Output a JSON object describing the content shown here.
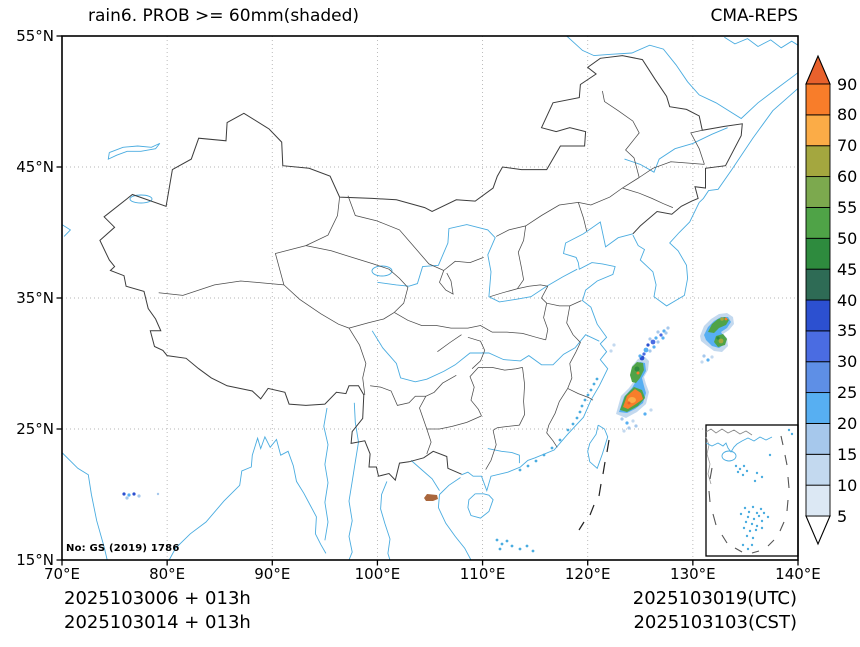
{
  "header": {
    "title": "rain6. PROB >= 60mm(shaded)",
    "model_label": "CMA-REPS"
  },
  "axes": {
    "x_ticks": [
      {
        "label": "70°E",
        "lon": 70
      },
      {
        "label": "80°E",
        "lon": 80
      },
      {
        "label": "90°E",
        "lon": 90
      },
      {
        "label": "100°E",
        "lon": 100
      },
      {
        "label": "110°E",
        "lon": 110
      },
      {
        "label": "120°E",
        "lon": 120
      },
      {
        "label": "130°E",
        "lon": 130
      },
      {
        "label": "140°E",
        "lon": 140
      }
    ],
    "y_ticks": [
      {
        "label": "55°N",
        "lat": 55
      },
      {
        "label": "45°N",
        "lat": 45
      },
      {
        "label": "35°N",
        "lat": 35
      },
      {
        "label": "25°N",
        "lat": 25
      },
      {
        "label": "15°N",
        "lat": 15
      }
    ]
  },
  "footer": {
    "left_line1": "2025103006 + 013h",
    "left_line2": "2025103014 + 013h",
    "right_line1": "2025103019(UTC)",
    "right_line2": "2025103103(CST)"
  },
  "map": {
    "license_note": "No: GS (2019) 1786"
  },
  "chart_data": {
    "type": "heatmap",
    "title": "rain6. PROB >= 60mm(shaded)",
    "model": "CMA-REPS",
    "variable": "probability of 6-h rainfall >= 60 mm (%), shaded",
    "map_extent": {
      "lon_min": 70,
      "lon_max": 140,
      "lat_min": 15,
      "lat_max": 55
    },
    "grid": "dotted, every 10 degrees",
    "init_runs": [
      "2025103006 + 013h",
      "2025103014 + 013h"
    ],
    "valid_times": [
      "2025103019(UTC)",
      "2025103103(CST)"
    ],
    "colorbar": {
      "orientation": "vertical-right",
      "levels": [
        5,
        10,
        15,
        20,
        25,
        30,
        35,
        40,
        45,
        50,
        55,
        60,
        70,
        80,
        90
      ],
      "colors": [
        "#DCE8F4",
        "#C3D9EF",
        "#A6C8EC",
        "#57AFF2",
        "#5E8FE6",
        "#4A6CE2",
        "#2C50D0",
        "#2E6B55",
        "#2E8B3E",
        "#4FA347",
        "#7CA94E",
        "#A4A73F",
        "#FBAC47",
        "#F87D2A"
      ],
      "over_color": "#E8612C",
      "under_color": "#FFFFFF"
    },
    "shaded_features": [
      {
        "name": "east-china-sea-band",
        "approx_lon": 122.8,
        "approx_lat_range": [
          26.5,
          31.5
        ],
        "peak_bin": "80-90"
      },
      {
        "name": "kyushu-area-blob",
        "approx_lon": 131.2,
        "approx_lat_range": [
          31.0,
          33.3
        ],
        "peak_bin": "60-70"
      },
      {
        "name": "north-vietnam-coast-spot",
        "approx_lon": 104.8,
        "approx_lat": 19.7,
        "peak_bin": "60-70"
      },
      {
        "name": "central-india-specks",
        "approx_lon": 76.5,
        "approx_lat": 20.0,
        "peak_bin": "25-40"
      }
    ]
  }
}
